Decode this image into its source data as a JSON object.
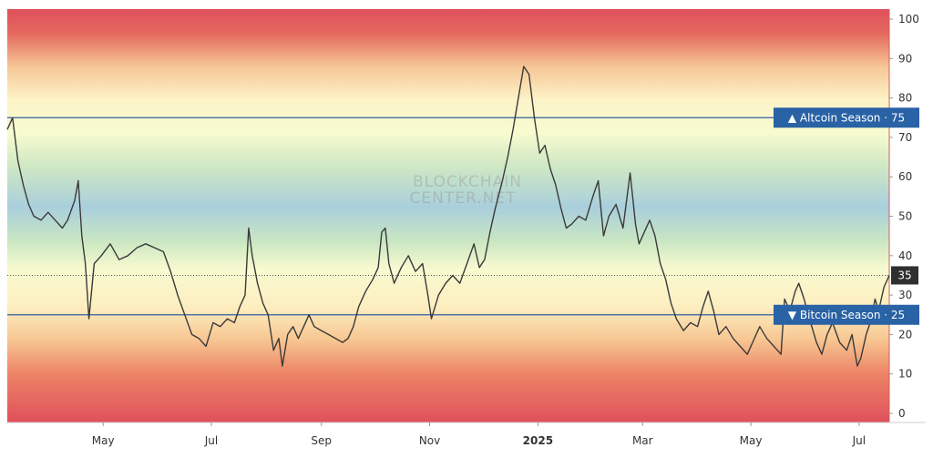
{
  "chart_data": {
    "type": "line",
    "ylim": [
      0,
      100
    ],
    "yticks": [
      0,
      10,
      20,
      30,
      40,
      50,
      60,
      70,
      80,
      90,
      100
    ],
    "xlim": [
      "2024-03-08",
      "2025-07-18"
    ],
    "xticks": [
      {
        "label": "May",
        "date": "2024-05-01"
      },
      {
        "label": "Jul",
        "date": "2024-07-01"
      },
      {
        "label": "Sep",
        "date": "2024-09-01"
      },
      {
        "label": "Nov",
        "date": "2024-11-01"
      },
      {
        "label": "2025",
        "date": "2025-01-01",
        "bold": true
      },
      {
        "label": "Mar",
        "date": "2025-03-01"
      },
      {
        "label": "May",
        "date": "2025-05-01"
      },
      {
        "label": "Jul",
        "date": "2025-07-01"
      }
    ],
    "reference_lines": [
      {
        "value": 75,
        "label": "▲ Altcoin Season · 75",
        "style": "solid"
      },
      {
        "value": 25,
        "label": "▼ Bitcoin Season · 25",
        "style": "solid"
      },
      {
        "value": 35,
        "label": "35",
        "style": "dotted",
        "current": true
      }
    ],
    "watermark": [
      "BLOCKCHAIN",
      "CENTER.NET"
    ],
    "grid": false,
    "background": "gradient red → orange → yellow → green → blue → green → yellow → orange → red",
    "series": [
      {
        "color": "#3a3a3a",
        "points": [
          [
            "2024-03-08",
            72
          ],
          [
            "2024-03-11",
            75
          ],
          [
            "2024-03-14",
            64
          ],
          [
            "2024-03-17",
            58
          ],
          [
            "2024-03-20",
            53
          ],
          [
            "2024-03-23",
            50
          ],
          [
            "2024-03-27",
            49
          ],
          [
            "2024-03-31",
            51
          ],
          [
            "2024-04-04",
            49
          ],
          [
            "2024-04-08",
            47
          ],
          [
            "2024-04-11",
            49
          ],
          [
            "2024-04-15",
            54
          ],
          [
            "2024-04-17",
            59
          ],
          [
            "2024-04-19",
            45
          ],
          [
            "2024-04-21",
            38
          ],
          [
            "2024-04-23",
            24
          ],
          [
            "2024-04-26",
            38
          ],
          [
            "2024-04-30",
            40
          ],
          [
            "2024-05-05",
            43
          ],
          [
            "2024-05-10",
            39
          ],
          [
            "2024-05-15",
            40
          ],
          [
            "2024-05-20",
            42
          ],
          [
            "2024-05-25",
            43
          ],
          [
            "2024-05-30",
            42
          ],
          [
            "2024-06-04",
            41
          ],
          [
            "2024-06-08",
            36
          ],
          [
            "2024-06-12",
            30
          ],
          [
            "2024-06-16",
            25
          ],
          [
            "2024-06-20",
            20
          ],
          [
            "2024-06-24",
            19
          ],
          [
            "2024-06-28",
            17
          ],
          [
            "2024-07-02",
            23
          ],
          [
            "2024-07-06",
            22
          ],
          [
            "2024-07-10",
            24
          ],
          [
            "2024-07-14",
            23
          ],
          [
            "2024-07-17",
            27
          ],
          [
            "2024-07-20",
            30
          ],
          [
            "2024-07-22",
            47
          ],
          [
            "2024-07-24",
            40
          ],
          [
            "2024-07-27",
            33
          ],
          [
            "2024-07-30",
            28
          ],
          [
            "2024-08-02",
            25
          ],
          [
            "2024-08-05",
            16
          ],
          [
            "2024-08-08",
            19
          ],
          [
            "2024-08-10",
            12
          ],
          [
            "2024-08-13",
            20
          ],
          [
            "2024-08-16",
            22
          ],
          [
            "2024-08-19",
            19
          ],
          [
            "2024-08-22",
            22
          ],
          [
            "2024-08-25",
            25
          ],
          [
            "2024-08-28",
            22
          ],
          [
            "2024-09-01",
            21
          ],
          [
            "2024-09-05",
            20
          ],
          [
            "2024-09-09",
            19
          ],
          [
            "2024-09-13",
            18
          ],
          [
            "2024-09-16",
            19
          ],
          [
            "2024-09-19",
            22
          ],
          [
            "2024-09-22",
            27
          ],
          [
            "2024-09-26",
            31
          ],
          [
            "2024-09-30",
            34
          ],
          [
            "2024-10-03",
            37
          ],
          [
            "2024-10-05",
            46
          ],
          [
            "2024-10-07",
            47
          ],
          [
            "2024-10-09",
            38
          ],
          [
            "2024-10-12",
            33
          ],
          [
            "2024-10-16",
            37
          ],
          [
            "2024-10-20",
            40
          ],
          [
            "2024-10-24",
            36
          ],
          [
            "2024-10-28",
            38
          ],
          [
            "2024-10-31",
            30
          ],
          [
            "2024-11-02",
            24
          ],
          [
            "2024-11-06",
            30
          ],
          [
            "2024-11-10",
            33
          ],
          [
            "2024-11-14",
            35
          ],
          [
            "2024-11-18",
            33
          ],
          [
            "2024-11-22",
            38
          ],
          [
            "2024-11-26",
            43
          ],
          [
            "2024-11-29",
            37
          ],
          [
            "2024-12-02",
            39
          ],
          [
            "2024-12-05",
            46
          ],
          [
            "2024-12-08",
            52
          ],
          [
            "2024-12-12",
            59
          ],
          [
            "2024-12-15",
            65
          ],
          [
            "2024-12-18",
            72
          ],
          [
            "2024-12-21",
            80
          ],
          [
            "2024-12-24",
            88
          ],
          [
            "2024-12-27",
            86
          ],
          [
            "2024-12-30",
            75
          ],
          [
            "2025-01-02",
            66
          ],
          [
            "2025-01-05",
            68
          ],
          [
            "2025-01-08",
            62
          ],
          [
            "2025-01-11",
            58
          ],
          [
            "2025-01-14",
            52
          ],
          [
            "2025-01-17",
            47
          ],
          [
            "2025-01-20",
            48
          ],
          [
            "2025-01-24",
            50
          ],
          [
            "2025-01-28",
            49
          ],
          [
            "2025-02-01",
            55
          ],
          [
            "2025-02-04",
            59
          ],
          [
            "2025-02-07",
            45
          ],
          [
            "2025-02-10",
            50
          ],
          [
            "2025-02-14",
            53
          ],
          [
            "2025-02-18",
            47
          ],
          [
            "2025-02-22",
            61
          ],
          [
            "2025-02-25",
            48
          ],
          [
            "2025-02-27",
            43
          ],
          [
            "2025-03-02",
            46
          ],
          [
            "2025-03-05",
            49
          ],
          [
            "2025-03-08",
            45
          ],
          [
            "2025-03-11",
            38
          ],
          [
            "2025-03-14",
            34
          ],
          [
            "2025-03-17",
            28
          ],
          [
            "2025-03-20",
            24
          ],
          [
            "2025-03-24",
            21
          ],
          [
            "2025-03-28",
            23
          ],
          [
            "2025-04-01",
            22
          ],
          [
            "2025-04-04",
            27
          ],
          [
            "2025-04-07",
            31
          ],
          [
            "2025-04-10",
            26
          ],
          [
            "2025-04-13",
            20
          ],
          [
            "2025-04-17",
            22
          ],
          [
            "2025-04-21",
            19
          ],
          [
            "2025-04-25",
            17
          ],
          [
            "2025-04-29",
            15
          ],
          [
            "2025-05-02",
            18
          ],
          [
            "2025-05-06",
            22
          ],
          [
            "2025-05-10",
            19
          ],
          [
            "2025-05-14",
            17
          ],
          [
            "2025-05-18",
            15
          ],
          [
            "2025-05-20",
            29
          ],
          [
            "2025-05-23",
            26
          ],
          [
            "2025-05-26",
            31
          ],
          [
            "2025-05-28",
            33
          ],
          [
            "2025-05-31",
            29
          ],
          [
            "2025-06-03",
            24
          ],
          [
            "2025-06-07",
            18
          ],
          [
            "2025-06-10",
            15
          ],
          [
            "2025-06-13",
            20
          ],
          [
            "2025-06-16",
            23
          ],
          [
            "2025-06-20",
            18
          ],
          [
            "2025-06-24",
            16
          ],
          [
            "2025-06-27",
            20
          ],
          [
            "2025-06-30",
            12
          ],
          [
            "2025-07-02",
            14
          ],
          [
            "2025-07-05",
            20
          ],
          [
            "2025-07-08",
            24
          ],
          [
            "2025-07-10",
            29
          ],
          [
            "2025-07-12",
            26
          ],
          [
            "2025-07-15",
            32
          ],
          [
            "2025-07-18",
            35
          ]
        ]
      }
    ]
  },
  "colors": {
    "line": "#3a3a3a",
    "badge": "#2962a5",
    "current_badge": "#2f2f2f",
    "reference_line": "#2e5ea0",
    "axis_text": "#333333"
  }
}
